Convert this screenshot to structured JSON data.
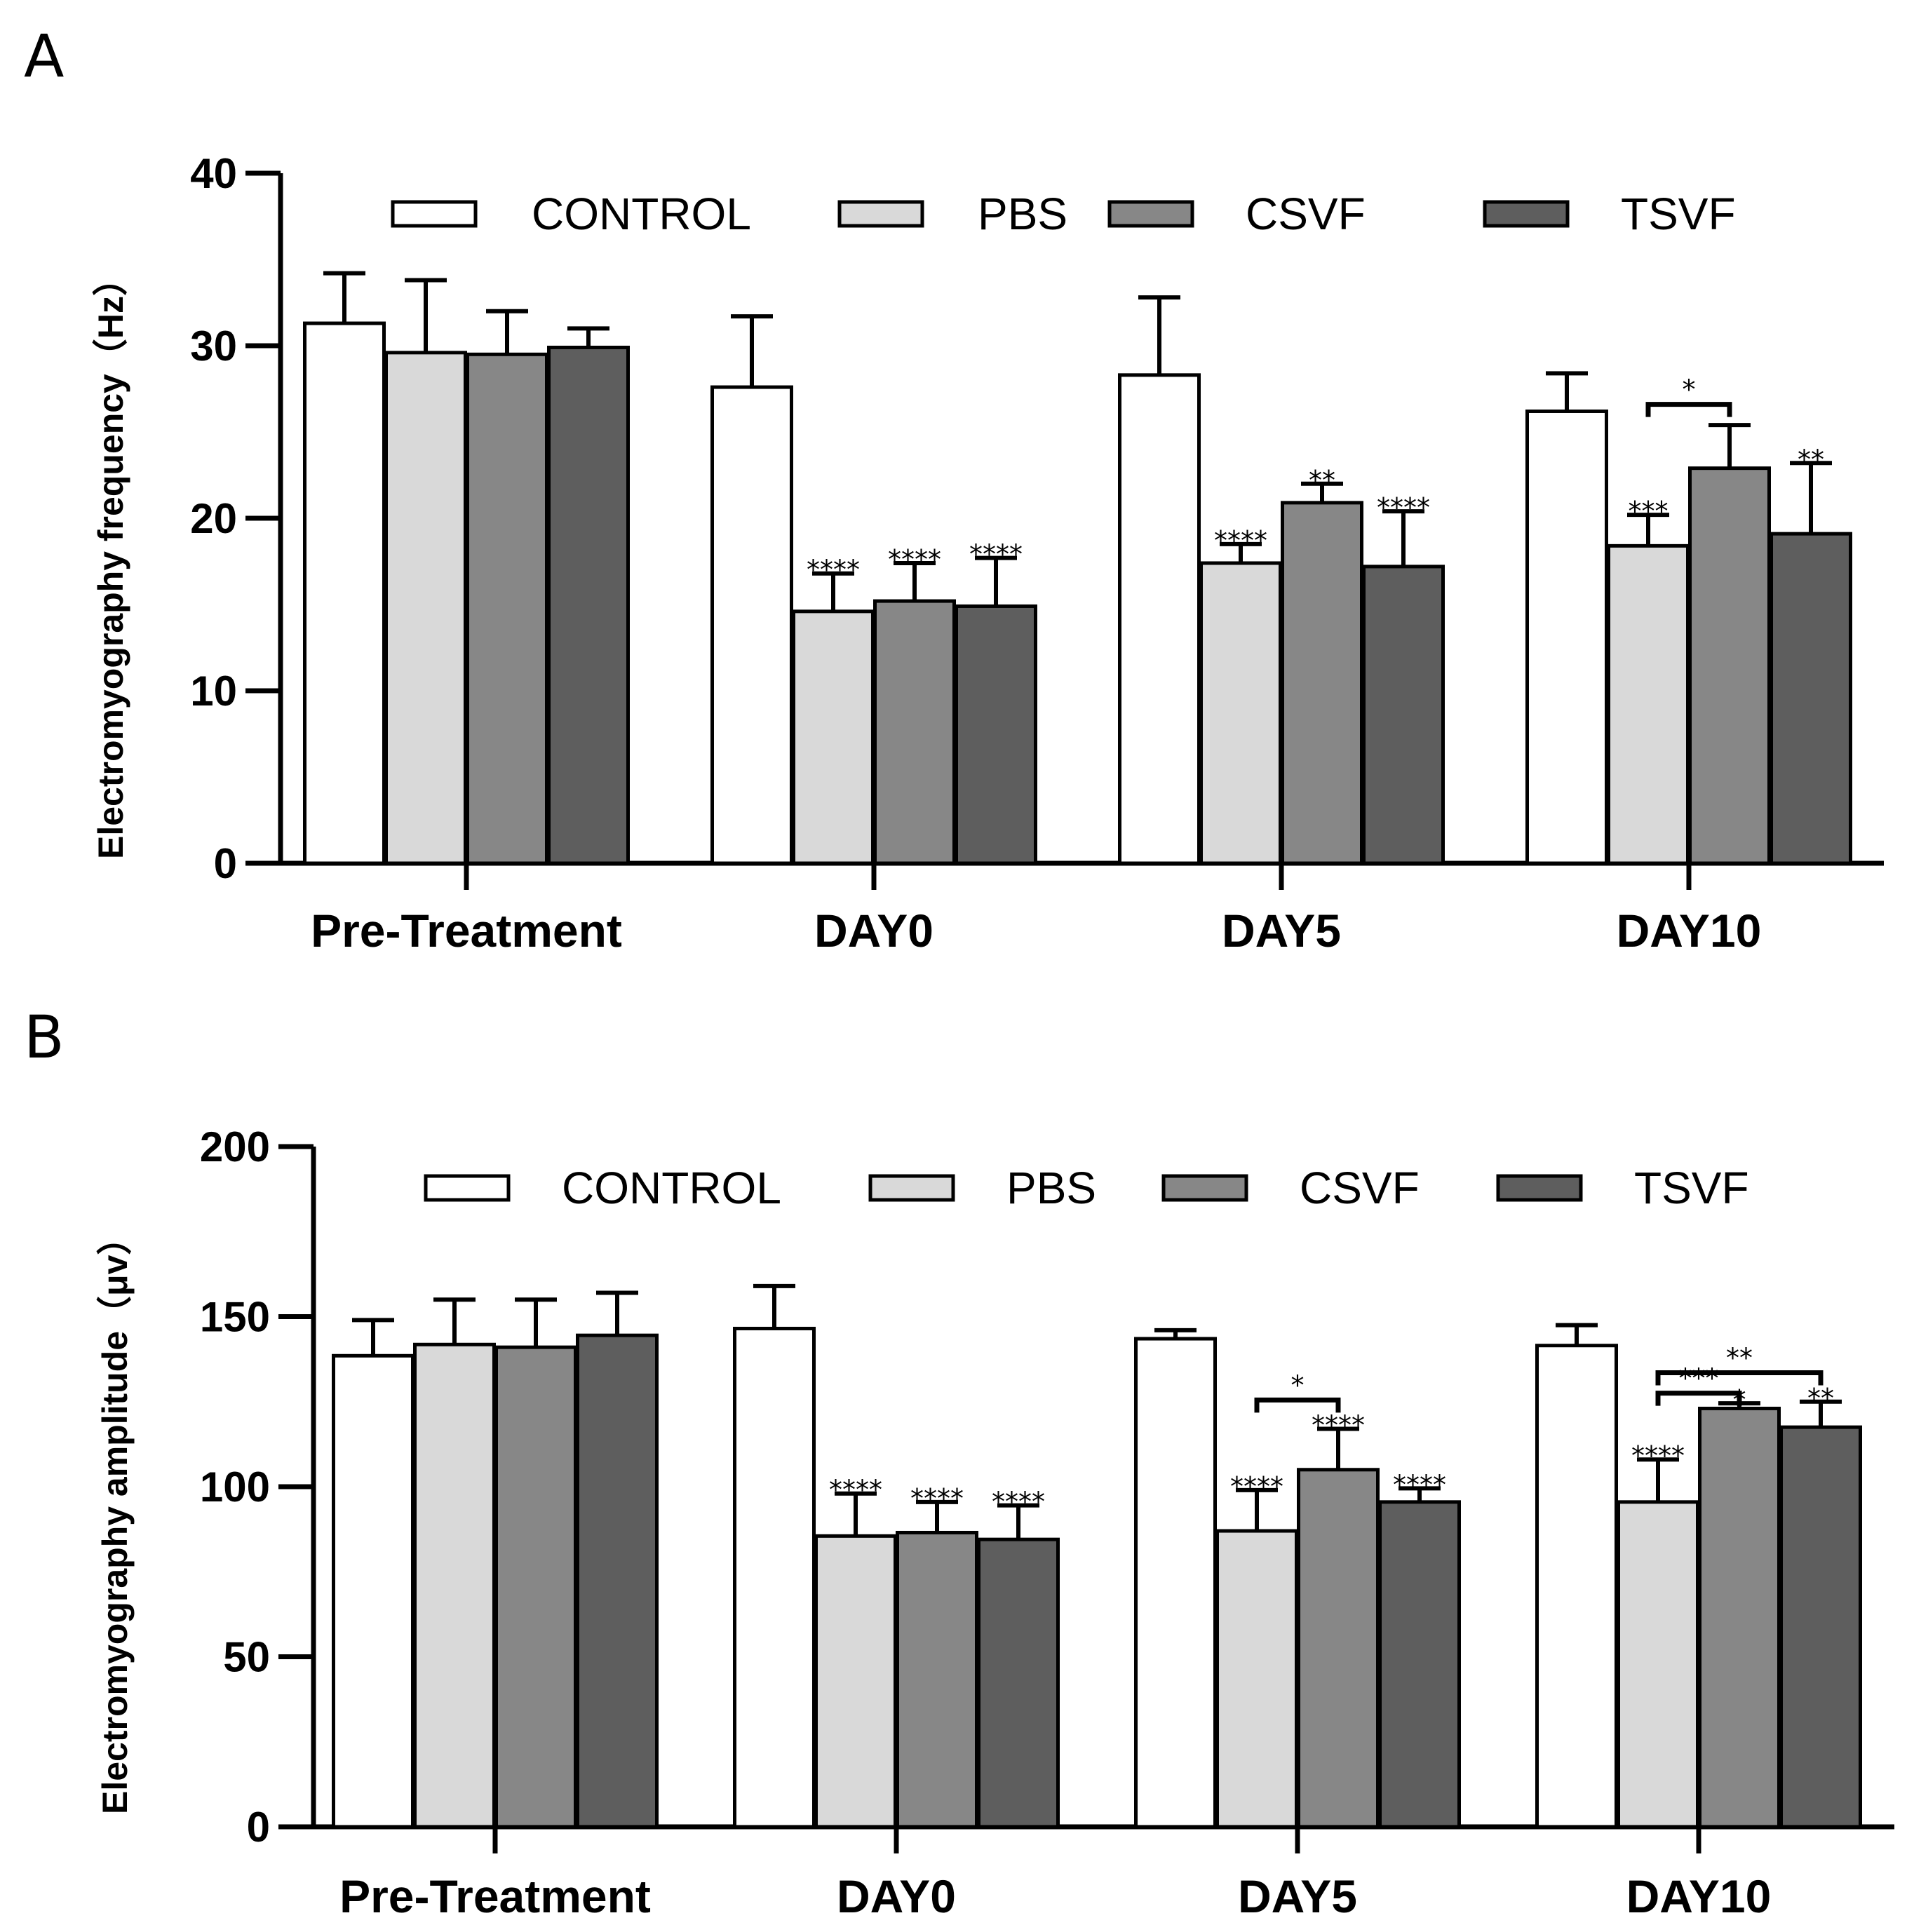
{
  "charts": [
    {
      "panel_label": "A",
      "chart_data": {
        "type": "bar",
        "title": "",
        "xlabel": "",
        "ylabel": "Electromyography frequency（Hz）",
        "ylim": [
          0,
          40
        ],
        "yticks": [
          "0",
          "10",
          "20",
          "30",
          "40"
        ],
        "categories": [
          "Pre-Treatment",
          "DAY0",
          "DAY5",
          "DAY10"
        ],
        "legend_position": "top",
        "grid": false,
        "series": [
          {
            "name": "CONTROL",
            "color": "#ffffff",
            "values": [
              31.3,
              27.6,
              28.3,
              26.2
            ],
            "errors": [
              2.9,
              4.1,
              4.5,
              2.2
            ],
            "stars": [
              "",
              "",
              "",
              ""
            ]
          },
          {
            "name": "PBS",
            "color": "#d9d9d9",
            "values": [
              29.6,
              14.6,
              17.4,
              18.4
            ],
            "errors": [
              4.2,
              2.2,
              1.1,
              1.8
            ],
            "stars": [
              "",
              "****",
              "****",
              "***"
            ]
          },
          {
            "name": "CSVF",
            "color": "#878787",
            "values": [
              29.5,
              15.2,
              20.9,
              22.9
            ],
            "errors": [
              2.5,
              2.2,
              1.1,
              2.5
            ],
            "stars": [
              "",
              "****",
              "**",
              ""
            ]
          },
          {
            "name": "TSVF",
            "color": "#5e5e5e",
            "values": [
              29.9,
              14.9,
              17.2,
              19.1
            ],
            "errors": [
              1.1,
              2.8,
              3.2,
              4.1
            ],
            "stars": [
              "",
              "****",
              "****",
              "**"
            ]
          }
        ],
        "comparisons": [
          {
            "category": 3,
            "from": 1,
            "to": 2,
            "level": 26.6,
            "label": "*"
          }
        ]
      }
    },
    {
      "panel_label": "B",
      "chart_data": {
        "type": "bar",
        "title": "",
        "xlabel": "",
        "ylabel": "Electromyography amplitude（μv）",
        "ylim": [
          0,
          200
        ],
        "yticks": [
          "0",
          "50",
          "100",
          "150",
          "200"
        ],
        "categories": [
          "Pre-Treatment",
          "DAY0",
          "DAY5",
          "DAY10"
        ],
        "legend_position": "top",
        "grid": false,
        "series": [
          {
            "name": "CONTROL",
            "color": "#ffffff",
            "values": [
              138.5,
              146.5,
              143.5,
              141.5
            ],
            "errors": [
              10.5,
              12.5,
              2.5,
              6.0
            ],
            "stars": [
              "",
              "",
              "",
              ""
            ]
          },
          {
            "name": "PBS",
            "color": "#d9d9d9",
            "values": [
              141.8,
              85.5,
              87.0,
              95.5
            ],
            "errors": [
              13.2,
              12.5,
              12.0,
              12.5
            ],
            "stars": [
              "",
              "****",
              "****",
              "****"
            ]
          },
          {
            "name": "CSVF",
            "color": "#878787",
            "values": [
              141.0,
              86.5,
              105.0,
              123.0
            ],
            "errors": [
              14.0,
              9.0,
              12.0,
              1.5
            ],
            "stars": [
              "",
              "****",
              "****",
              "*"
            ]
          },
          {
            "name": "TSVF",
            "color": "#5e5e5e",
            "values": [
              144.5,
              84.5,
              95.5,
              117.5
            ],
            "errors": [
              12.5,
              10.0,
              4.0,
              7.5
            ],
            "stars": [
              "",
              "****",
              "****",
              "**"
            ]
          }
        ],
        "comparisons": [
          {
            "category": 2,
            "from": 1,
            "to": 2,
            "level": 125.5,
            "label": "*"
          },
          {
            "category": 3,
            "from": 1,
            "to": 3,
            "level": 133.5,
            "label": "**"
          },
          {
            "category": 3,
            "from": 1,
            "to": 2,
            "level": 127.5,
            "label": "***"
          }
        ]
      }
    }
  ]
}
